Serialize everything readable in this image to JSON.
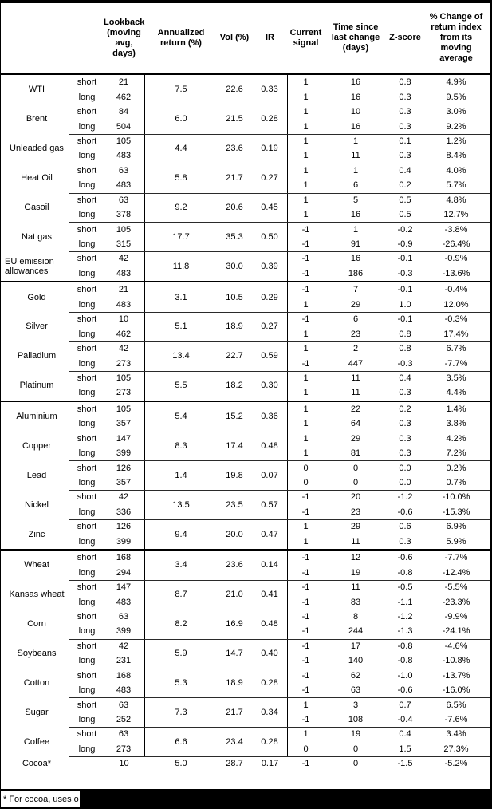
{
  "header": {
    "columns": [
      "",
      "",
      "Lookback (moving avg, days)",
      "Annualized return (%)",
      "Vol (%)",
      "IR",
      "Current signal",
      "Time since last change (days)",
      "Z-score",
      "% Change of return index from its moving average"
    ]
  },
  "groups": [
    {
      "commodities": [
        {
          "name": "WTI",
          "annualized": "7.5",
          "vol": "22.6",
          "ir": "0.33",
          "rows": [
            {
              "sl": "short",
              "lookback": "21",
              "signal": "1",
              "time": "16",
              "z": "0.8",
              "pct": "4.9%"
            },
            {
              "sl": "long",
              "lookback": "462",
              "signal": "1",
              "time": "16",
              "z": "0.3",
              "pct": "9.5%"
            }
          ]
        },
        {
          "name": "Brent",
          "annualized": "6.0",
          "vol": "21.5",
          "ir": "0.28",
          "rows": [
            {
              "sl": "short",
              "lookback": "84",
              "signal": "1",
              "time": "10",
              "z": "0.3",
              "pct": "3.0%"
            },
            {
              "sl": "long",
              "lookback": "504",
              "signal": "1",
              "time": "16",
              "z": "0.3",
              "pct": "9.2%"
            }
          ]
        },
        {
          "name": "Unleaded gas",
          "annualized": "4.4",
          "vol": "23.6",
          "ir": "0.19",
          "rows": [
            {
              "sl": "short",
              "lookback": "105",
              "signal": "1",
              "time": "1",
              "z": "0.1",
              "pct": "1.2%"
            },
            {
              "sl": "long",
              "lookback": "483",
              "signal": "1",
              "time": "11",
              "z": "0.3",
              "pct": "8.4%"
            }
          ]
        },
        {
          "name": "Heat Oil",
          "annualized": "5.8",
          "vol": "21.7",
          "ir": "0.27",
          "rows": [
            {
              "sl": "short",
              "lookback": "63",
              "signal": "1",
              "time": "1",
              "z": "0.4",
              "pct": "4.0%"
            },
            {
              "sl": "long",
              "lookback": "483",
              "signal": "1",
              "time": "6",
              "z": "0.2",
              "pct": "5.7%"
            }
          ]
        },
        {
          "name": "Gasoil",
          "annualized": "9.2",
          "vol": "20.6",
          "ir": "0.45",
          "rows": [
            {
              "sl": "short",
              "lookback": "63",
              "signal": "1",
              "time": "5",
              "z": "0.5",
              "pct": "4.8%"
            },
            {
              "sl": "long",
              "lookback": "378",
              "signal": "1",
              "time": "16",
              "z": "0.5",
              "pct": "12.7%"
            }
          ]
        },
        {
          "name": "Nat gas",
          "annualized": "17.7",
          "vol": "35.3",
          "ir": "0.50",
          "rows": [
            {
              "sl": "short",
              "lookback": "105",
              "signal": "-1",
              "time": "1",
              "z": "-0.2",
              "pct": "-3.8%"
            },
            {
              "sl": "long",
              "lookback": "315",
              "signal": "-1",
              "time": "91",
              "z": "-0.9",
              "pct": "-26.4%"
            }
          ]
        },
        {
          "name": "EU emission allowances",
          "annualized": "11.8",
          "vol": "30.0",
          "ir": "0.39",
          "rows": [
            {
              "sl": "short",
              "lookback": "42",
              "signal": "-1",
              "time": "16",
              "z": "-0.1",
              "pct": "-0.9%"
            },
            {
              "sl": "long",
              "lookback": "483",
              "signal": "-1",
              "time": "186",
              "z": "-0.3",
              "pct": "-13.6%"
            }
          ]
        }
      ]
    },
    {
      "commodities": [
        {
          "name": "Gold",
          "annualized": "3.1",
          "vol": "10.5",
          "ir": "0.29",
          "rows": [
            {
              "sl": "short",
              "lookback": "21",
              "signal": "-1",
              "time": "7",
              "z": "-0.1",
              "pct": "-0.4%"
            },
            {
              "sl": "long",
              "lookback": "483",
              "signal": "1",
              "time": "29",
              "z": "1.0",
              "pct": "12.0%"
            }
          ]
        },
        {
          "name": "Silver",
          "annualized": "5.1",
          "vol": "18.9",
          "ir": "0.27",
          "rows": [
            {
              "sl": "short",
              "lookback": "10",
              "signal": "-1",
              "time": "6",
              "z": "-0.1",
              "pct": "-0.3%"
            },
            {
              "sl": "long",
              "lookback": "462",
              "signal": "1",
              "time": "23",
              "z": "0.8",
              "pct": "17.4%"
            }
          ]
        },
        {
          "name": "Palladium",
          "annualized": "13.4",
          "vol": "22.7",
          "ir": "0.59",
          "rows": [
            {
              "sl": "short",
              "lookback": "42",
              "signal": "1",
              "time": "2",
              "z": "0.8",
              "pct": "6.7%"
            },
            {
              "sl": "long",
              "lookback": "273",
              "signal": "-1",
              "time": "447",
              "z": "-0.3",
              "pct": "-7.7%"
            }
          ]
        },
        {
          "name": "Platinum",
          "annualized": "5.5",
          "vol": "18.2",
          "ir": "0.30",
          "rows": [
            {
              "sl": "short",
              "lookback": "105",
              "signal": "1",
              "time": "11",
              "z": "0.4",
              "pct": "3.5%"
            },
            {
              "sl": "long",
              "lookback": "273",
              "signal": "1",
              "time": "11",
              "z": "0.3",
              "pct": "4.4%"
            }
          ]
        }
      ]
    },
    {
      "commodities": [
        {
          "name": "Aluminium",
          "annualized": "5.4",
          "vol": "15.2",
          "ir": "0.36",
          "rows": [
            {
              "sl": "short",
              "lookback": "105",
              "signal": "1",
              "time": "22",
              "z": "0.2",
              "pct": "1.4%"
            },
            {
              "sl": "long",
              "lookback": "357",
              "signal": "1",
              "time": "64",
              "z": "0.3",
              "pct": "3.8%"
            }
          ]
        },
        {
          "name": "Copper",
          "annualized": "8.3",
          "vol": "17.4",
          "ir": "0.48",
          "rows": [
            {
              "sl": "short",
              "lookback": "147",
              "signal": "1",
              "time": "29",
              "z": "0.3",
              "pct": "4.2%"
            },
            {
              "sl": "long",
              "lookback": "399",
              "signal": "1",
              "time": "81",
              "z": "0.3",
              "pct": "7.2%"
            }
          ]
        },
        {
          "name": "Lead",
          "annualized": "1.4",
          "vol": "19.8",
          "ir": "0.07",
          "rows": [
            {
              "sl": "short",
              "lookback": "126",
              "signal": "0",
              "time": "0",
              "z": "0.0",
              "pct": "0.2%"
            },
            {
              "sl": "long",
              "lookback": "357",
              "signal": "0",
              "time": "0",
              "z": "0.0",
              "pct": "0.7%"
            }
          ]
        },
        {
          "name": "Nickel",
          "annualized": "13.5",
          "vol": "23.5",
          "ir": "0.57",
          "rows": [
            {
              "sl": "short",
              "lookback": "42",
              "signal": "-1",
              "time": "20",
              "z": "-1.2",
              "pct": "-10.0%"
            },
            {
              "sl": "long",
              "lookback": "336",
              "signal": "-1",
              "time": "23",
              "z": "-0.6",
              "pct": "-15.3%"
            }
          ]
        },
        {
          "name": "Zinc",
          "annualized": "9.4",
          "vol": "20.0",
          "ir": "0.47",
          "rows": [
            {
              "sl": "short",
              "lookback": "126",
              "signal": "1",
              "time": "29",
              "z": "0.6",
              "pct": "6.9%"
            },
            {
              "sl": "long",
              "lookback": "399",
              "signal": "1",
              "time": "11",
              "z": "0.3",
              "pct": "5.9%"
            }
          ]
        }
      ]
    },
    {
      "commodities": [
        {
          "name": "Wheat",
          "annualized": "3.4",
          "vol": "23.6",
          "ir": "0.14",
          "rows": [
            {
              "sl": "short",
              "lookback": "168",
              "signal": "-1",
              "time": "12",
              "z": "-0.6",
              "pct": "-7.7%"
            },
            {
              "sl": "long",
              "lookback": "294",
              "signal": "-1",
              "time": "19",
              "z": "-0.8",
              "pct": "-12.4%"
            }
          ]
        },
        {
          "name": "Kansas wheat",
          "annualized": "8.7",
          "vol": "21.0",
          "ir": "0.41",
          "rows": [
            {
              "sl": "short",
              "lookback": "147",
              "signal": "-1",
              "time": "11",
              "z": "-0.5",
              "pct": "-5.5%"
            },
            {
              "sl": "long",
              "lookback": "483",
              "signal": "-1",
              "time": "83",
              "z": "-1.1",
              "pct": "-23.3%"
            }
          ]
        },
        {
          "name": "Corn",
          "annualized": "8.2",
          "vol": "16.9",
          "ir": "0.48",
          "rows": [
            {
              "sl": "short",
              "lookback": "63",
              "signal": "-1",
              "time": "8",
              "z": "-1.2",
              "pct": "-9.9%"
            },
            {
              "sl": "long",
              "lookback": "399",
              "signal": "-1",
              "time": "244",
              "z": "-1.3",
              "pct": "-24.1%"
            }
          ]
        },
        {
          "name": "Soybeans",
          "annualized": "5.9",
          "vol": "14.7",
          "ir": "0.40",
          "rows": [
            {
              "sl": "short",
              "lookback": "42",
              "signal": "-1",
              "time": "17",
              "z": "-0.8",
              "pct": "-4.6%"
            },
            {
              "sl": "long",
              "lookback": "231",
              "signal": "-1",
              "time": "140",
              "z": "-0.8",
              "pct": "-10.8%"
            }
          ]
        },
        {
          "name": "Cotton",
          "annualized": "5.3",
          "vol": "18.9",
          "ir": "0.28",
          "rows": [
            {
              "sl": "short",
              "lookback": "168",
              "signal": "-1",
              "time": "62",
              "z": "-1.0",
              "pct": "-13.7%"
            },
            {
              "sl": "long",
              "lookback": "483",
              "signal": "-1",
              "time": "63",
              "z": "-0.6",
              "pct": "-16.0%"
            }
          ]
        },
        {
          "name": "Sugar",
          "annualized": "7.3",
          "vol": "21.7",
          "ir": "0.34",
          "rows": [
            {
              "sl": "short",
              "lookback": "63",
              "signal": "1",
              "time": "3",
              "z": "0.7",
              "pct": "6.5%"
            },
            {
              "sl": "long",
              "lookback": "252",
              "signal": "-1",
              "time": "108",
              "z": "-0.4",
              "pct": "-7.6%"
            }
          ]
        },
        {
          "name": "Coffee",
          "annualized": "6.6",
          "vol": "23.4",
          "ir": "0.28",
          "rows": [
            {
              "sl": "short",
              "lookback": "63",
              "signal": "1",
              "time": "19",
              "z": "0.4",
              "pct": "3.4%"
            },
            {
              "sl": "long",
              "lookback": "273",
              "signal": "0",
              "time": "0",
              "z": "1.5",
              "pct": "27.3%"
            }
          ]
        }
      ]
    }
  ],
  "cocoa": {
    "name": "Cocoa*",
    "lookback": "10",
    "annualized": "5.0",
    "vol": "28.7",
    "ir": "0.17",
    "signal": "-1",
    "time": "0",
    "z": "-1.5",
    "pct": "-5.2%"
  },
  "footnote": {
    "text": "* For cocoa, uses o"
  }
}
